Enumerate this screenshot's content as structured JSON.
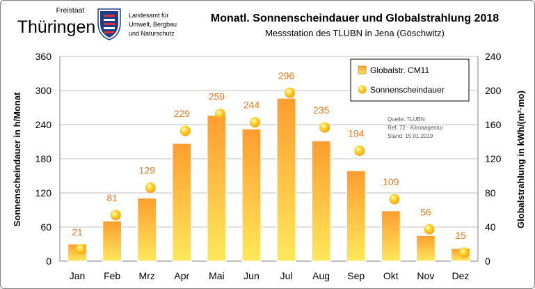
{
  "logo": {
    "state_small": "Freistaat",
    "state_big": "Thüringen",
    "agency_lines": [
      "Landesamt für",
      "Umwelt, Bergbau",
      "und Naturschutz"
    ],
    "icon": "coat-of-arms-icon"
  },
  "source_note": [
    "Quelle: TLUBN",
    "Ref. 72 - Klimaagentur",
    "Stand: 15.01.2019"
  ],
  "colors": {
    "bar_top": "#ff9d2e",
    "bar_bottom": "#ffe85a",
    "bar_edge": "#ffffff",
    "point_fill": "#ffd21f",
    "point_glow": "#ff9a1e",
    "data_label": "#e87a1c",
    "grid": "#bfbfbf",
    "text": "#000000"
  },
  "chart_data": {
    "type": "bar",
    "title": "Monatl. Sonnenscheindauer und Globalstrahlung 2018",
    "subtitle": "Messstation  des TLUBN  in Jena (Göschwitz)",
    "categories": [
      "Jan",
      "Feb",
      "Mrz",
      "Apr",
      "Mai",
      "Jun",
      "Jul",
      "Aug",
      "Sep",
      "Okt",
      "Nov",
      "Dez"
    ],
    "ylabel_left": "Sonnenscheindauer  in h/Monat",
    "ylabel_right": "Globalstrahlung  in kWh/(m²·mo)",
    "ylim_left": [
      0,
      360
    ],
    "ylim_right": [
      0,
      240
    ],
    "yticks_left": [
      0,
      60,
      120,
      180,
      240,
      300,
      360
    ],
    "yticks_right": [
      0,
      40,
      80,
      120,
      160,
      200,
      240
    ],
    "grid": true,
    "legend_position": "top-right",
    "series": [
      {
        "name": "Globalstr. CM11",
        "kind": "bar",
        "axis": "right",
        "values": [
          20,
          47,
          74,
          138,
          171,
          155,
          191,
          141,
          106,
          59,
          30,
          15
        ]
      },
      {
        "name": "Sonnenscheindauer",
        "kind": "point",
        "axis": "left",
        "values": [
          21,
          81,
          129,
          229,
          259,
          244,
          296,
          235,
          194,
          109,
          56,
          15
        ],
        "labels": [
          "21",
          "81",
          "129",
          "229",
          "259",
          "244",
          "296",
          "235",
          "194",
          "109",
          "56",
          "15"
        ]
      }
    ]
  }
}
